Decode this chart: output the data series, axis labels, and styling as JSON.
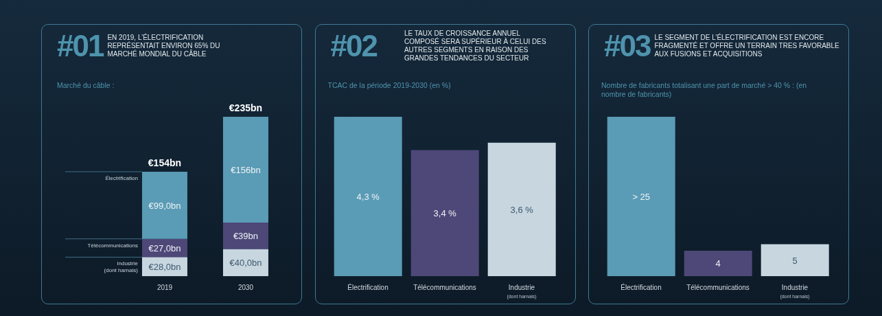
{
  "chart_data": [
    {
      "type": "bar",
      "title": "#01",
      "subtitle": "EN 2019, L’ÉLECTRIFICATION REPRÉSENTAIT ENVIRON 65% DU MARCHÉ MONDIAL DU CÂBLE",
      "ylabel": "Marché du câble :",
      "categories": [
        "2019",
        "2030"
      ],
      "stacked": true,
      "totals": [
        "€154bn",
        "€235bn"
      ],
      "series": [
        {
          "name": "Industrie (dont harnais)",
          "color": "#c8d6e0",
          "values": [
            28,
            40
          ],
          "value_labels": [
            "€28,0bn",
            "€40,0bn"
          ]
        },
        {
          "name": "Télécommunications",
          "color": "#4d4878",
          "values": [
            27,
            39
          ],
          "value_labels": [
            "€27,0bn",
            "€39bn"
          ]
        },
        {
          "name": "Électrification",
          "color": "#5a9bb5",
          "values": [
            99,
            156
          ],
          "value_labels": [
            "€99,0bn",
            "€156bn"
          ]
        }
      ]
    },
    {
      "type": "bar",
      "title": "#02",
      "subtitle": "LE TAUX DE CROISSANCE ANNUEL COMPOSÉ SERA SUPÉRIEUR À CELUI DES AUTRES SEGMENTS EN RAISON DES GRANDES TENDANCES DU SECTEUR",
      "ylabel": "TCAC de la période 2019-2030 (en %)",
      "categories": [
        "Électrification",
        "Télécommunications",
        "Industrie (dont harnais)"
      ],
      "values": [
        4.3,
        3.4,
        3.6
      ],
      "colors": [
        "#5a9bb5",
        "#4d4878",
        "#c8d6e0"
      ],
      "value_labels": [
        "4,3 %",
        "3,4 %",
        "3,6 %"
      ]
    },
    {
      "type": "bar",
      "title": "#03",
      "subtitle": "LE SEGMENT DE L’ÉLECTRIFICATION EST ENCORE FRAGMENTÉ ET OFFRE UN TERRAIN TRES FAVORABLE AUX FUSIONS ET ACQUISITIONS",
      "ylabel": "Nombre de fabricants totalisant une part de marché > 40 % : (en nombre de fabricants)",
      "categories": [
        "Électrification",
        "Télécommunications",
        "Industrie (dont harnais)"
      ],
      "values": [
        25,
        4,
        5
      ],
      "colors": [
        "#5a9bb5",
        "#4d4878",
        "#c8d6e0"
      ],
      "value_labels": [
        "> 25",
        "4",
        "5"
      ]
    }
  ]
}
